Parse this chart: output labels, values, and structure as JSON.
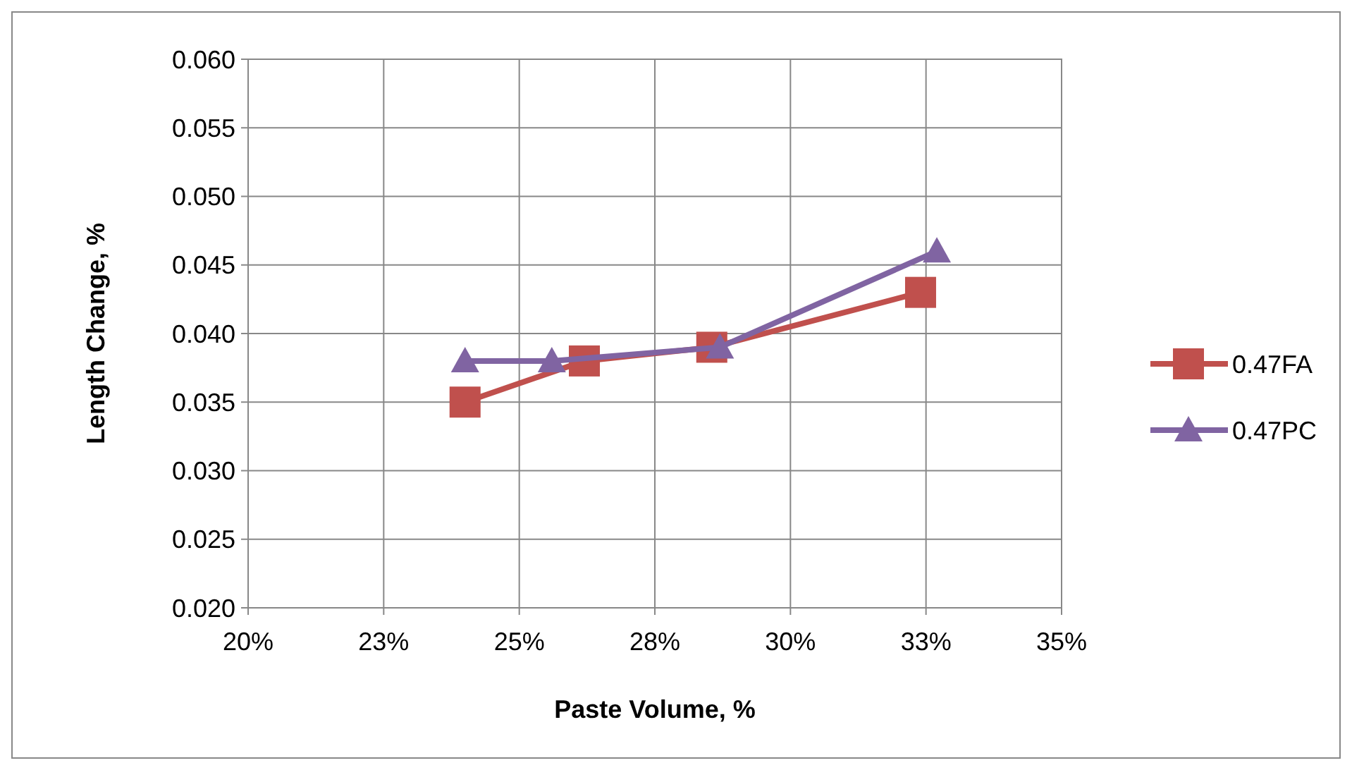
{
  "chart_data": {
    "type": "line",
    "xlabel": "Paste Volume, %",
    "ylabel": "Length Change, %",
    "xlim": [
      20,
      35
    ],
    "xticks": [
      {
        "value": 20,
        "label": "20%"
      },
      {
        "value": 22.5,
        "label": "23%"
      },
      {
        "value": 25,
        "label": "25%"
      },
      {
        "value": 27.5,
        "label": "28%"
      },
      {
        "value": 30,
        "label": "30%"
      },
      {
        "value": 32.5,
        "label": "33%"
      },
      {
        "value": 35,
        "label": "35%"
      }
    ],
    "ylim": [
      0.02,
      0.06
    ],
    "yticks": [
      {
        "value": 0.02,
        "label": "0.020"
      },
      {
        "value": 0.025,
        "label": "0.025"
      },
      {
        "value": 0.03,
        "label": "0.030"
      },
      {
        "value": 0.035,
        "label": "0.035"
      },
      {
        "value": 0.04,
        "label": "0.040"
      },
      {
        "value": 0.045,
        "label": "0.045"
      },
      {
        "value": 0.05,
        "label": "0.050"
      },
      {
        "value": 0.055,
        "label": "0.055"
      },
      {
        "value": 0.06,
        "label": "0.060"
      }
    ],
    "grid": true,
    "legend": "right",
    "series": [
      {
        "name": "0.47FA",
        "color": "#c0504d",
        "marker": "square",
        "x": [
          24.0,
          26.2,
          28.55,
          32.4
        ],
        "values": [
          0.035,
          0.038,
          0.039,
          0.043
        ]
      },
      {
        "name": "0.47PC",
        "color": "#8064a2",
        "marker": "triangle",
        "x": [
          24.0,
          25.6,
          28.7,
          32.7
        ],
        "values": [
          0.038,
          0.038,
          0.039,
          0.046
        ]
      }
    ]
  }
}
